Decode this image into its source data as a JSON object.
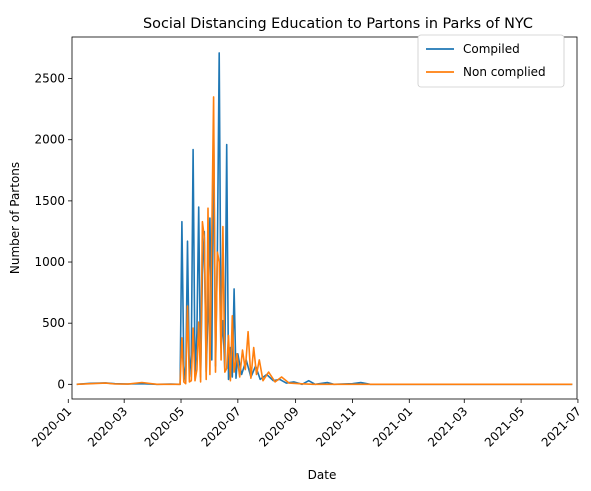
{
  "chart_data": {
    "type": "line",
    "title": "Social Distancing Education to Partons in Parks of NYC",
    "xlabel": "Date",
    "ylabel": "Number of Partons",
    "xlim": [
      "2020-01-05",
      "2021-06-30"
    ],
    "ylim": [
      -120,
      2840
    ],
    "grid": false,
    "legend_position": "top-right",
    "x_ticks": [
      "2020-01",
      "2020-03",
      "2020-05",
      "2020-07",
      "2020-09",
      "2020-11",
      "2021-01",
      "2021-03",
      "2021-05",
      "2021-07"
    ],
    "y_ticks": [
      0,
      500,
      1000,
      1500,
      2000,
      2500
    ],
    "series": [
      {
        "name": "Compiled",
        "color": "#1f77b4",
        "points": [
          [
            "2020-01-10",
            0
          ],
          [
            "2020-01-25",
            8
          ],
          [
            "2020-02-10",
            12
          ],
          [
            "2020-02-20",
            5
          ],
          [
            "2020-03-05",
            3
          ],
          [
            "2020-03-20",
            5
          ],
          [
            "2020-04-05",
            0
          ],
          [
            "2020-04-20",
            2
          ],
          [
            "2020-04-30",
            0
          ],
          [
            "2020-05-02",
            1330
          ],
          [
            "2020-05-04",
            150
          ],
          [
            "2020-05-06",
            20
          ],
          [
            "2020-05-08",
            1170
          ],
          [
            "2020-05-10",
            60
          ],
          [
            "2020-05-12",
            240
          ],
          [
            "2020-05-14",
            1920
          ],
          [
            "2020-05-16",
            80
          ],
          [
            "2020-05-18",
            420
          ],
          [
            "2020-05-20",
            1450
          ],
          [
            "2020-05-22",
            60
          ],
          [
            "2020-05-24",
            900
          ],
          [
            "2020-05-26",
            1250
          ],
          [
            "2020-05-28",
            100
          ],
          [
            "2020-05-30",
            600
          ],
          [
            "2020-06-01",
            1360
          ],
          [
            "2020-06-03",
            200
          ],
          [
            "2020-06-05",
            2120
          ],
          [
            "2020-06-07",
            150
          ],
          [
            "2020-06-09",
            1100
          ],
          [
            "2020-06-11",
            2710
          ],
          [
            "2020-06-13",
            300
          ],
          [
            "2020-06-15",
            520
          ],
          [
            "2020-06-17",
            120
          ],
          [
            "2020-06-19",
            1960
          ],
          [
            "2020-06-21",
            40
          ],
          [
            "2020-06-23",
            300
          ],
          [
            "2020-06-25",
            60
          ],
          [
            "2020-06-27",
            780
          ],
          [
            "2020-06-29",
            50
          ],
          [
            "2020-07-01",
            250
          ],
          [
            "2020-07-05",
            80
          ],
          [
            "2020-07-10",
            200
          ],
          [
            "2020-07-15",
            60
          ],
          [
            "2020-07-20",
            150
          ],
          [
            "2020-07-25",
            40
          ],
          [
            "2020-08-01",
            80
          ],
          [
            "2020-08-08",
            30
          ],
          [
            "2020-08-15",
            40
          ],
          [
            "2020-08-22",
            10
          ],
          [
            "2020-08-30",
            20
          ],
          [
            "2020-09-08",
            0
          ],
          [
            "2020-09-15",
            30
          ],
          [
            "2020-09-22",
            0
          ],
          [
            "2020-10-05",
            15
          ],
          [
            "2020-10-12",
            0
          ],
          [
            "2020-11-01",
            5
          ],
          [
            "2020-11-10",
            15
          ],
          [
            "2020-11-20",
            0
          ],
          [
            "2021-06-25",
            0
          ]
        ]
      },
      {
        "name": "Non complied",
        "color": "#ff7f0e",
        "points": [
          [
            "2020-01-10",
            0
          ],
          [
            "2020-01-25",
            5
          ],
          [
            "2020-02-10",
            10
          ],
          [
            "2020-02-20",
            3
          ],
          [
            "2020-03-05",
            2
          ],
          [
            "2020-03-20",
            15
          ],
          [
            "2020-04-05",
            0
          ],
          [
            "2020-04-30",
            0
          ],
          [
            "2020-05-02",
            380
          ],
          [
            "2020-05-04",
            20
          ],
          [
            "2020-05-06",
            5
          ],
          [
            "2020-05-08",
            640
          ],
          [
            "2020-05-10",
            20
          ],
          [
            "2020-05-12",
            30
          ],
          [
            "2020-05-14",
            460
          ],
          [
            "2020-05-16",
            30
          ],
          [
            "2020-05-18",
            120
          ],
          [
            "2020-05-20",
            510
          ],
          [
            "2020-05-22",
            20
          ],
          [
            "2020-05-24",
            1330
          ],
          [
            "2020-05-26",
            1200
          ],
          [
            "2020-05-28",
            40
          ],
          [
            "2020-05-30",
            1440
          ],
          [
            "2020-06-01",
            80
          ],
          [
            "2020-06-03",
            1230
          ],
          [
            "2020-06-05",
            2350
          ],
          [
            "2020-06-07",
            100
          ],
          [
            "2020-06-09",
            1080
          ],
          [
            "2020-06-11",
            1000
          ],
          [
            "2020-06-13",
            200
          ],
          [
            "2020-06-15",
            1290
          ],
          [
            "2020-06-17",
            100
          ],
          [
            "2020-06-19",
            130
          ],
          [
            "2020-06-21",
            400
          ],
          [
            "2020-06-23",
            30
          ],
          [
            "2020-06-25",
            560
          ],
          [
            "2020-06-27",
            100
          ],
          [
            "2020-06-30",
            250
          ],
          [
            "2020-07-03",
            60
          ],
          [
            "2020-07-06",
            280
          ],
          [
            "2020-07-09",
            120
          ],
          [
            "2020-07-12",
            430
          ],
          [
            "2020-07-15",
            50
          ],
          [
            "2020-07-18",
            300
          ],
          [
            "2020-07-21",
            80
          ],
          [
            "2020-07-24",
            200
          ],
          [
            "2020-07-28",
            30
          ],
          [
            "2020-08-03",
            100
          ],
          [
            "2020-08-10",
            20
          ],
          [
            "2020-08-17",
            60
          ],
          [
            "2020-08-25",
            10
          ],
          [
            "2020-09-05",
            5
          ],
          [
            "2020-09-20",
            0
          ],
          [
            "2020-11-10",
            0
          ],
          [
            "2021-06-25",
            0
          ]
        ]
      }
    ]
  }
}
